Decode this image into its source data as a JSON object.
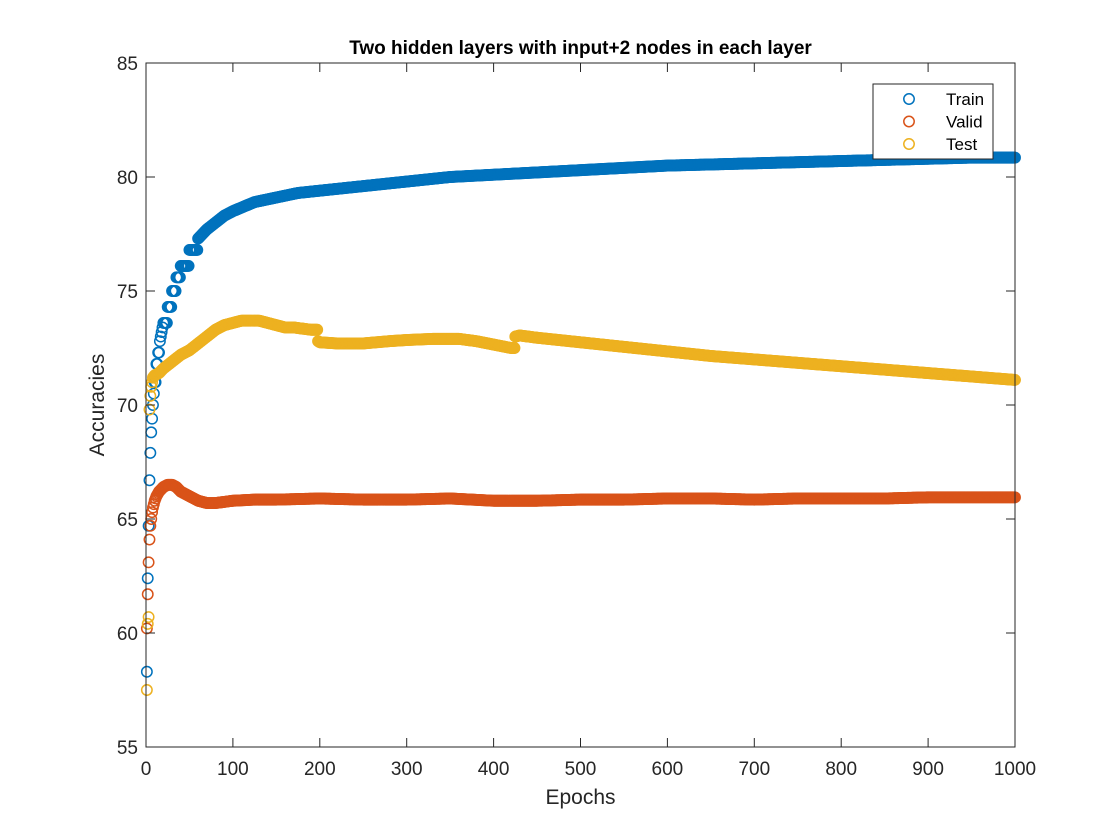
{
  "chart_data": {
    "type": "scatter",
    "title": "Two hidden layers with input+2 nodes in each layer",
    "xlabel": "Epochs",
    "ylabel": "Accuracies",
    "xlim": [
      0,
      1000
    ],
    "ylim": [
      55,
      85
    ],
    "xticks": [
      0,
      100,
      200,
      300,
      400,
      500,
      600,
      700,
      800,
      900,
      1000
    ],
    "yticks": [
      55,
      60,
      65,
      70,
      75,
      80,
      85
    ],
    "grid": false,
    "legend_position": "top-right",
    "marker": "open-circle",
    "series": [
      {
        "name": "Train",
        "color": "#0072BD",
        "points": [
          [
            1,
            58.3
          ],
          [
            2,
            62.4
          ],
          [
            3,
            64.7
          ],
          [
            4,
            66.7
          ],
          [
            5,
            67.9
          ],
          [
            6,
            68.8
          ],
          [
            7,
            69.4
          ],
          [
            8,
            70.0
          ],
          [
            9,
            70.5
          ],
          [
            10,
            71.0
          ],
          [
            12,
            71.8
          ],
          [
            14,
            72.3
          ],
          [
            16,
            72.8
          ],
          [
            18,
            73.2
          ],
          [
            20,
            73.6
          ],
          [
            25,
            74.3
          ],
          [
            30,
            75.0
          ],
          [
            35,
            75.6
          ],
          [
            40,
            76.1
          ],
          [
            50,
            76.8
          ],
          [
            60,
            77.3
          ],
          [
            70,
            77.7
          ],
          [
            80,
            78.0
          ],
          [
            90,
            78.3
          ],
          [
            100,
            78.5
          ],
          [
            125,
            78.9
          ],
          [
            150,
            79.1
          ],
          [
            175,
            79.3
          ],
          [
            200,
            79.4
          ],
          [
            250,
            79.6
          ],
          [
            300,
            79.8
          ],
          [
            350,
            80.0
          ],
          [
            400,
            80.1
          ],
          [
            450,
            80.2
          ],
          [
            500,
            80.3
          ],
          [
            550,
            80.4
          ],
          [
            600,
            80.5
          ],
          [
            650,
            80.55
          ],
          [
            700,
            80.6
          ],
          [
            750,
            80.65
          ],
          [
            800,
            80.7
          ],
          [
            850,
            80.75
          ],
          [
            900,
            80.8
          ],
          [
            950,
            80.85
          ],
          [
            1000,
            80.85
          ]
        ]
      },
      {
        "name": "Valid",
        "color": "#D95319",
        "points": [
          [
            1,
            60.2
          ],
          [
            2,
            61.7
          ],
          [
            3,
            63.1
          ],
          [
            4,
            64.1
          ],
          [
            5,
            64.7
          ],
          [
            6,
            65.0
          ],
          [
            7,
            65.3
          ],
          [
            8,
            65.5
          ],
          [
            10,
            65.8
          ],
          [
            12,
            66.0
          ],
          [
            15,
            66.2
          ],
          [
            20,
            66.4
          ],
          [
            25,
            66.5
          ],
          [
            30,
            66.5
          ],
          [
            35,
            66.4
          ],
          [
            40,
            66.2
          ],
          [
            50,
            66.0
          ],
          [
            60,
            65.8
          ],
          [
            70,
            65.7
          ],
          [
            80,
            65.7
          ],
          [
            90,
            65.75
          ],
          [
            100,
            65.8
          ],
          [
            125,
            65.85
          ],
          [
            150,
            65.85
          ],
          [
            200,
            65.9
          ],
          [
            250,
            65.85
          ],
          [
            300,
            65.85
          ],
          [
            350,
            65.9
          ],
          [
            400,
            65.8
          ],
          [
            450,
            65.8
          ],
          [
            500,
            65.85
          ],
          [
            550,
            65.85
          ],
          [
            600,
            65.9
          ],
          [
            650,
            65.9
          ],
          [
            700,
            65.85
          ],
          [
            750,
            65.9
          ],
          [
            800,
            65.9
          ],
          [
            850,
            65.9
          ],
          [
            900,
            65.95
          ],
          [
            950,
            65.95
          ],
          [
            1000,
            65.95
          ]
        ]
      },
      {
        "name": "Test",
        "color": "#EDB120",
        "points": [
          [
            1,
            57.5
          ],
          [
            2,
            60.4
          ],
          [
            3,
            60.7
          ],
          [
            4,
            69.8
          ],
          [
            5,
            70.4
          ],
          [
            6,
            70.8
          ],
          [
            7,
            71.0
          ],
          [
            8,
            71.2
          ],
          [
            10,
            71.3
          ],
          [
            15,
            71.4
          ],
          [
            20,
            71.6
          ],
          [
            30,
            71.9
          ],
          [
            40,
            72.2
          ],
          [
            50,
            72.4
          ],
          [
            60,
            72.7
          ],
          [
            70,
            73.0
          ],
          [
            80,
            73.3
          ],
          [
            90,
            73.5
          ],
          [
            100,
            73.6
          ],
          [
            110,
            73.7
          ],
          [
            120,
            73.7
          ],
          [
            130,
            73.7
          ],
          [
            140,
            73.6
          ],
          [
            150,
            73.5
          ],
          [
            160,
            73.4
          ],
          [
            170,
            73.4
          ],
          [
            180,
            73.35
          ],
          [
            190,
            73.3
          ],
          [
            195,
            73.3
          ],
          [
            198,
            72.8
          ],
          [
            200,
            72.75
          ],
          [
            220,
            72.7
          ],
          [
            250,
            72.7
          ],
          [
            280,
            72.8
          ],
          [
            300,
            72.85
          ],
          [
            330,
            72.9
          ],
          [
            360,
            72.9
          ],
          [
            380,
            72.8
          ],
          [
            400,
            72.65
          ],
          [
            420,
            72.5
          ],
          [
            425,
            73.0
          ],
          [
            430,
            73.05
          ],
          [
            450,
            72.95
          ],
          [
            500,
            72.75
          ],
          [
            550,
            72.55
          ],
          [
            600,
            72.35
          ],
          [
            650,
            72.15
          ],
          [
            700,
            72.0
          ],
          [
            750,
            71.85
          ],
          [
            800,
            71.7
          ],
          [
            850,
            71.55
          ],
          [
            900,
            71.4
          ],
          [
            950,
            71.25
          ],
          [
            1000,
            71.1
          ]
        ]
      }
    ]
  }
}
